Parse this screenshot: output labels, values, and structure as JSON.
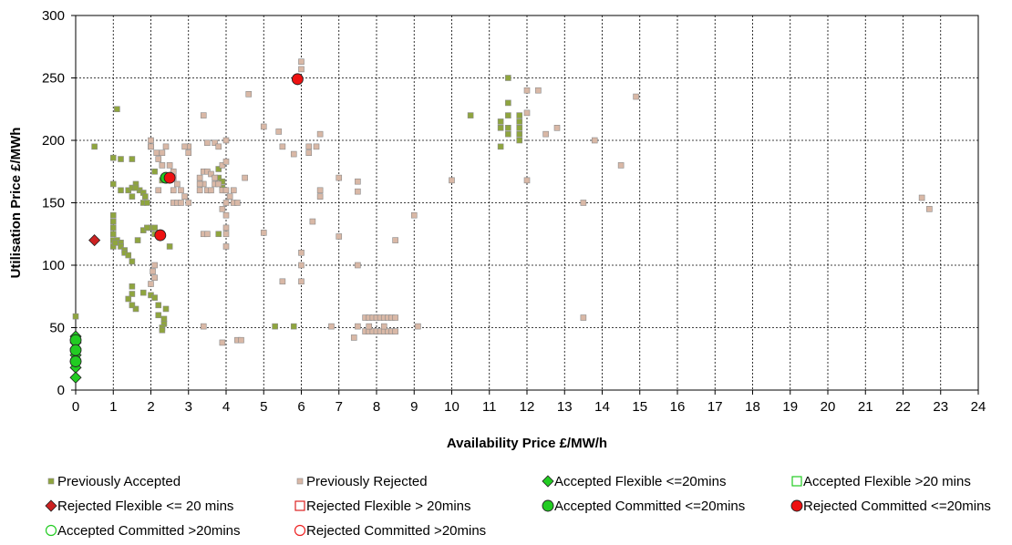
{
  "chart_data": {
    "type": "scatter",
    "xlabel": "Availability Price £/MW/h",
    "ylabel": "Utilisation Price £/MWh",
    "xlim": [
      0,
      24
    ],
    "ylim": [
      0,
      300
    ],
    "xticks": [
      "0",
      "1",
      "2",
      "3",
      "4",
      "5",
      "6",
      "7",
      "8",
      "9",
      "10",
      "11",
      "12",
      "13",
      "14",
      "15",
      "16",
      "17",
      "18",
      "19",
      "20",
      "21",
      "22",
      "23",
      "24"
    ],
    "yticks": [
      "0",
      "50",
      "100",
      "150",
      "200",
      "250",
      "300"
    ],
    "grid": "dashed",
    "legend_position": "bottom",
    "series": [
      {
        "name": "Previously Accepted",
        "marker": "square",
        "color": "#8FA53E",
        "points": [
          [
            0,
            59
          ],
          [
            0.5,
            195
          ],
          [
            1,
            186
          ],
          [
            1.1,
            225
          ],
          [
            1.2,
            185
          ],
          [
            1.5,
            185
          ],
          [
            1,
            165
          ],
          [
            1.2,
            160
          ],
          [
            1.4,
            160
          ],
          [
            1.5,
            155
          ],
          [
            1.6,
            165
          ],
          [
            1.7,
            160
          ],
          [
            1.8,
            158
          ],
          [
            1.85,
            155
          ],
          [
            1.8,
            150
          ],
          [
            1.9,
            150
          ],
          [
            1.5,
            162
          ],
          [
            1.6,
            162
          ],
          [
            1,
            140
          ],
          [
            1,
            135
          ],
          [
            1,
            130
          ],
          [
            1,
            125
          ],
          [
            1,
            120
          ],
          [
            1.1,
            120
          ],
          [
            1.2,
            118
          ],
          [
            1.2,
            115
          ],
          [
            1.3,
            112
          ],
          [
            1.3,
            110
          ],
          [
            1.4,
            108
          ],
          [
            1.5,
            103
          ],
          [
            1,
            115
          ],
          [
            1.05,
            118
          ],
          [
            1.65,
            120
          ],
          [
            1.8,
            128
          ],
          [
            2,
            130
          ],
          [
            2.1,
            130
          ],
          [
            1.9,
            130
          ],
          [
            1.5,
            83
          ],
          [
            1.5,
            77
          ],
          [
            1.4,
            73
          ],
          [
            1.6,
            65
          ],
          [
            1.5,
            68
          ],
          [
            1.8,
            78
          ],
          [
            2,
            76
          ],
          [
            2.1,
            74
          ],
          [
            2.2,
            68
          ],
          [
            2.2,
            60
          ],
          [
            2.4,
            65
          ],
          [
            2.35,
            57
          ],
          [
            2.35,
            53
          ],
          [
            2.3,
            50
          ],
          [
            2.3,
            48
          ],
          [
            2.5,
            115
          ],
          [
            2.1,
            125
          ],
          [
            3.8,
            125
          ],
          [
            3.8,
            170
          ],
          [
            3.9,
            167
          ],
          [
            3.8,
            177
          ],
          [
            3.9,
            162
          ],
          [
            2.3,
            168
          ],
          [
            2.4,
            170
          ],
          [
            2.1,
            175
          ],
          [
            2,
            195
          ],
          [
            5.3,
            51
          ],
          [
            5.8,
            51
          ],
          [
            10.5,
            220
          ],
          [
            11.3,
            215
          ],
          [
            11.3,
            210
          ],
          [
            11.5,
            250
          ],
          [
            11.5,
            230
          ],
          [
            11.5,
            220
          ],
          [
            11.5,
            210
          ],
          [
            11.5,
            205
          ],
          [
            11.8,
            220
          ],
          [
            11.8,
            215
          ],
          [
            11.8,
            210
          ],
          [
            11.8,
            205
          ],
          [
            11.8,
            200
          ],
          [
            11.3,
            195
          ]
        ]
      },
      {
        "name": "Previously Rejected",
        "marker": "square",
        "color": "#D9B8A6",
        "points": [
          [
            2,
            200
          ],
          [
            2,
            195
          ],
          [
            2.15,
            190
          ],
          [
            2.3,
            190
          ],
          [
            2.4,
            195
          ],
          [
            2.2,
            185
          ],
          [
            2.3,
            180
          ],
          [
            2.5,
            180
          ],
          [
            2.6,
            175
          ],
          [
            2.6,
            170
          ],
          [
            2.7,
            165
          ],
          [
            2.8,
            160
          ],
          [
            2.6,
            160
          ],
          [
            2.6,
            150
          ],
          [
            2.9,
            155
          ],
          [
            3,
            150
          ],
          [
            2.2,
            160
          ],
          [
            2.7,
            150
          ],
          [
            2.8,
            150
          ],
          [
            3,
            195
          ],
          [
            2.9,
            195
          ],
          [
            3,
            190
          ],
          [
            2.1,
            100
          ],
          [
            2.05,
            95
          ],
          [
            2.1,
            90
          ],
          [
            2,
            85
          ],
          [
            3.4,
            220
          ],
          [
            3.5,
            198
          ],
          [
            3.7,
            198
          ],
          [
            3.8,
            195
          ],
          [
            4,
            200
          ],
          [
            3.4,
            175
          ],
          [
            3.5,
            175
          ],
          [
            3.6,
            173
          ],
          [
            3.7,
            170
          ],
          [
            3.3,
            170
          ],
          [
            3.4,
            165
          ],
          [
            3.5,
            160
          ],
          [
            3.6,
            160
          ],
          [
            3.7,
            165
          ],
          [
            3.8,
            165
          ],
          [
            3.9,
            160
          ],
          [
            4,
            160
          ],
          [
            4.1,
            155
          ],
          [
            4.2,
            150
          ],
          [
            4,
            150
          ],
          [
            3.9,
            145
          ],
          [
            4,
            140
          ],
          [
            4,
            130
          ],
          [
            4,
            125
          ],
          [
            4,
            115
          ],
          [
            3.4,
            125
          ],
          [
            3.5,
            125
          ],
          [
            3.3,
            165
          ],
          [
            3.3,
            160
          ],
          [
            3.9,
            180
          ],
          [
            4,
            183
          ],
          [
            4.2,
            160
          ],
          [
            4.3,
            150
          ],
          [
            4.5,
            170
          ],
          [
            4.6,
            237
          ],
          [
            3.4,
            51
          ],
          [
            3.9,
            38
          ],
          [
            4.3,
            40
          ],
          [
            4.4,
            40
          ],
          [
            5,
            211
          ],
          [
            5,
            126
          ],
          [
            5.4,
            207
          ],
          [
            5.5,
            195
          ],
          [
            5.8,
            189
          ],
          [
            6,
            263
          ],
          [
            6,
            257
          ],
          [
            6,
            110
          ],
          [
            6,
            100
          ],
          [
            6,
            87
          ],
          [
            5.5,
            87
          ],
          [
            6.2,
            195
          ],
          [
            6.4,
            195
          ],
          [
            6.5,
            205
          ],
          [
            6.2,
            190
          ],
          [
            6.5,
            160
          ],
          [
            6.5,
            155
          ],
          [
            6.3,
            135
          ],
          [
            6.8,
            51
          ],
          [
            7,
            170
          ],
          [
            7,
            123
          ],
          [
            7.4,
            42
          ],
          [
            7.5,
            167
          ],
          [
            7.5,
            159
          ],
          [
            7.5,
            100
          ],
          [
            7.5,
            51
          ],
          [
            7.7,
            58
          ],
          [
            7.8,
            58
          ],
          [
            7.9,
            58
          ],
          [
            8,
            58
          ],
          [
            8.1,
            58
          ],
          [
            8.2,
            58
          ],
          [
            8.3,
            58
          ],
          [
            8.4,
            58
          ],
          [
            8.5,
            58
          ],
          [
            7.7,
            47
          ],
          [
            7.8,
            47
          ],
          [
            7.9,
            47
          ],
          [
            8,
            47
          ],
          [
            8.1,
            47
          ],
          [
            8.2,
            47
          ],
          [
            8.3,
            47
          ],
          [
            8.4,
            47
          ],
          [
            8.5,
            47
          ],
          [
            7.8,
            51
          ],
          [
            8.2,
            51
          ],
          [
            8.5,
            120
          ],
          [
            9,
            140
          ],
          [
            9.1,
            51
          ],
          [
            10,
            168
          ],
          [
            12,
            240
          ],
          [
            12.3,
            240
          ],
          [
            12,
            222
          ],
          [
            12,
            168
          ],
          [
            12.5,
            205
          ],
          [
            12.8,
            210
          ],
          [
            13.5,
            150
          ],
          [
            13.5,
            58
          ],
          [
            13.8,
            200
          ],
          [
            14.5,
            180
          ],
          [
            14.9,
            235
          ],
          [
            22.5,
            154
          ],
          [
            22.7,
            145
          ]
        ]
      },
      {
        "name": "Accepted Flexible <=20mins",
        "marker": "diamond",
        "color": "#22CC22",
        "points": [
          [
            0,
            43
          ],
          [
            0,
            38
          ],
          [
            0,
            33
          ],
          [
            0,
            28
          ],
          [
            0,
            23
          ],
          [
            0,
            18
          ],
          [
            0,
            10
          ]
        ]
      },
      {
        "name": "Accepted Flexible >20 mins",
        "marker": "open-square",
        "color": "#22CC22",
        "points": []
      },
      {
        "name": "Rejected Flexible <= 20 mins",
        "marker": "diamond",
        "color": "#CC2222",
        "points": [
          [
            0.5,
            120
          ]
        ]
      },
      {
        "name": "Rejected Flexible > 20mins",
        "marker": "open-square",
        "color": "#DD2222",
        "points": []
      },
      {
        "name": "Accepted Committed <=20mins",
        "marker": "circle",
        "color": "#22CC22",
        "points": [
          [
            0,
            40
          ],
          [
            0,
            32
          ],
          [
            0,
            23
          ],
          [
            2.4,
            170
          ]
        ]
      },
      {
        "name": "Rejected Committed <=20mins",
        "marker": "circle",
        "color": "#EE1111",
        "points": [
          [
            5.9,
            249
          ],
          [
            2.5,
            170
          ],
          [
            2.25,
            124
          ]
        ]
      },
      {
        "name": "Accepted Committed >20mins",
        "marker": "open-circle",
        "color": "#22CC22",
        "points": []
      },
      {
        "name": "Rejected Committed >20mins",
        "marker": "open-circle",
        "color": "#EE2222",
        "points": []
      }
    ]
  }
}
